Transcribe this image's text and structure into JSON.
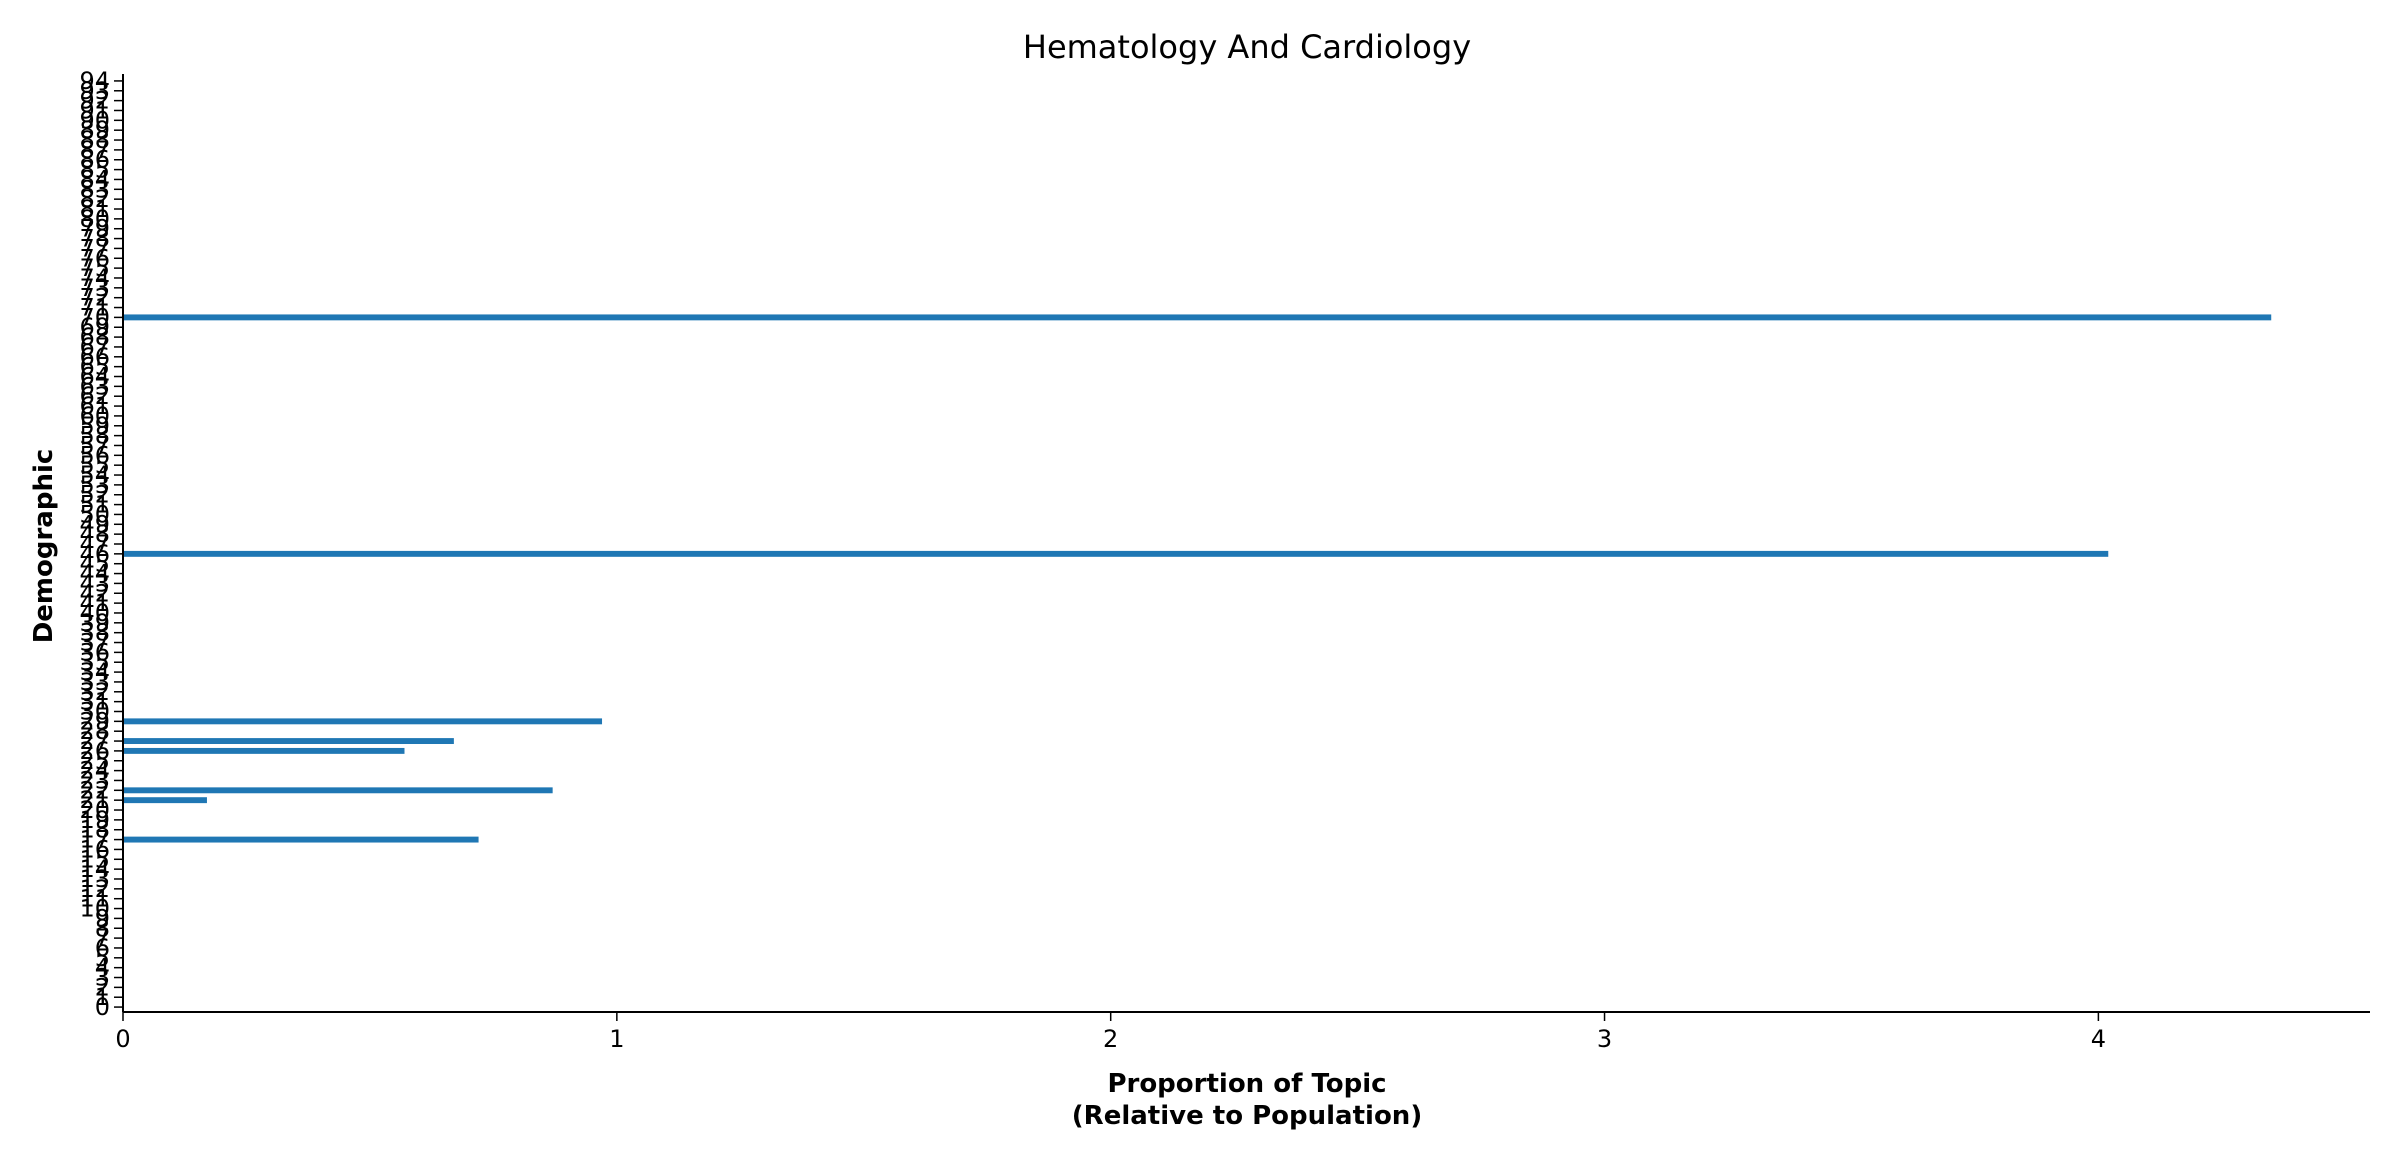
{
  "chart_data": {
    "type": "bar",
    "orientation": "horizontal",
    "title": "Hematology And Cardiology",
    "xlabel_lines": [
      "Proportion of Topic",
      "(Relative to Population)"
    ],
    "ylabel": "Demographic",
    "xlim": [
      0,
      4.55
    ],
    "ylim": [
      -0.5,
      94.5
    ],
    "x_ticks": [
      0,
      1,
      2,
      3,
      4
    ],
    "y_ticks": [
      0,
      1,
      2,
      3,
      4,
      5,
      6,
      7,
      8,
      9,
      10,
      11,
      12,
      13,
      14,
      15,
      16,
      17,
      18,
      19,
      20,
      21,
      22,
      23,
      24,
      25,
      26,
      27,
      28,
      29,
      30,
      31,
      32,
      33,
      34,
      35,
      36,
      37,
      38,
      39,
      40,
      41,
      42,
      43,
      44,
      45,
      46,
      47,
      48,
      49,
      50,
      51,
      52,
      53,
      54,
      55,
      56,
      57,
      58,
      59,
      60,
      61,
      62,
      63,
      64,
      65,
      66,
      67,
      68,
      69,
      70,
      71,
      72,
      73,
      74,
      75,
      76,
      77,
      78,
      79,
      80,
      81,
      82,
      83,
      84,
      85,
      86,
      87,
      88,
      89,
      90,
      91,
      92,
      93,
      94
    ],
    "bars": [
      {
        "category": 17,
        "value": 0.72
      },
      {
        "category": 21,
        "value": 0.17
      },
      {
        "category": 22,
        "value": 0.87
      },
      {
        "category": 26,
        "value": 0.57
      },
      {
        "category": 27,
        "value": 0.67
      },
      {
        "category": 29,
        "value": 0.97
      },
      {
        "category": 46,
        "value": 4.02
      },
      {
        "category": 70,
        "value": 4.35
      }
    ],
    "bar_color": "#1f77b4",
    "axis_color": "#000000",
    "grid": false,
    "legend": "none"
  }
}
